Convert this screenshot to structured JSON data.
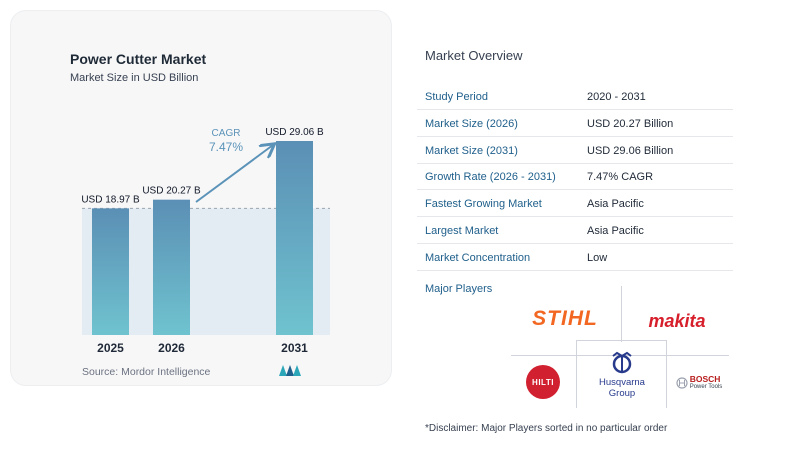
{
  "chart": {
    "title": "Power Cutter Market",
    "subtitle": "Market Size in USD Billion",
    "source": "Source:  Mordor Intelligence",
    "cagr_label": "CAGR",
    "cagr_value": "7.47%"
  },
  "chart_data": {
    "type": "bar",
    "categories": [
      "2025",
      "2026",
      "2031"
    ],
    "values": [
      18.97,
      20.27,
      29.06
    ],
    "data_labels": [
      "USD 18.97 B",
      "USD 20.27 B",
      "USD 29.06 B"
    ],
    "title": "Power Cutter Market",
    "subtitle": "Market Size in USD Billion",
    "ylim": [
      0,
      30
    ],
    "annotation": "CAGR 7.47%",
    "bar_color": "#5b93b8"
  },
  "overview": {
    "title": "Market Overview",
    "rows": [
      {
        "key": "Study Period",
        "value": "2020 - 2031"
      },
      {
        "key": "Market Size (2026)",
        "value": "USD 20.27 Billion"
      },
      {
        "key": "Market Size (2031)",
        "value": "USD 29.06 Billion"
      },
      {
        "key": "Growth Rate (2026 - 2031)",
        "value": "7.47% CAGR"
      },
      {
        "key": "Fastest Growing Market",
        "value": "Asia Pacific"
      },
      {
        "key": "Largest Market",
        "value": "Asia Pacific"
      },
      {
        "key": "Market Concentration",
        "value": "Low"
      }
    ]
  },
  "players": {
    "label": "Major Players",
    "logos": {
      "stihl": "STIHL",
      "makita": "makita",
      "hilti": "HILTI",
      "husqvarna_line1": "Husqvarna",
      "husqvarna_line2": "Group",
      "bosch_line1": "BOSCH",
      "bosch_line2": "Power Tools"
    }
  },
  "disclaimer": "*Disclaimer: Major Players sorted in no particular order",
  "colors": {
    "accent_text": "#1f5f8b",
    "bar": "#5b93b8",
    "stihl": "#f26722",
    "makita": "#d71e2b",
    "hilti": "#d1202f",
    "husqvarna": "#273a8c"
  }
}
